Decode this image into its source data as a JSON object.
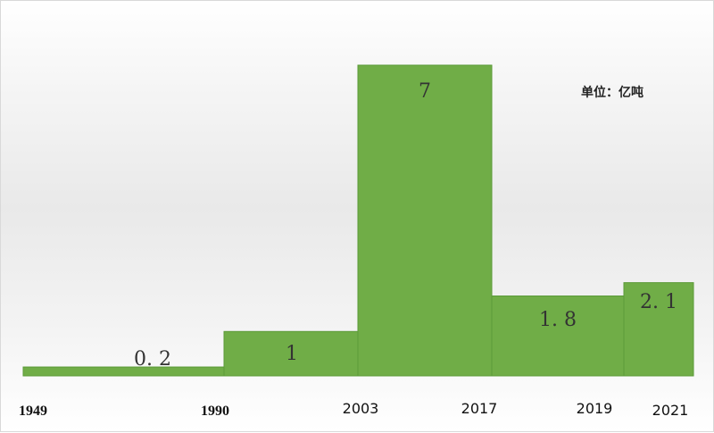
{
  "chart_data": {
    "type": "bar",
    "unit_label": "单位：亿吨",
    "bar_color": "#70ad47",
    "bar_color_dark": "#5b9a38",
    "bars": [
      {
        "start_label": "1949",
        "end_label": "1990",
        "value": 0.2,
        "data_label": "0. 2"
      },
      {
        "start_label": "1990",
        "end_label": "2003",
        "value": 1,
        "data_label": "1"
      },
      {
        "start_label": "2003",
        "end_label": "2017",
        "value": 7,
        "data_label": "7"
      },
      {
        "start_label": "2017",
        "end_label": "2019",
        "value": 1.8,
        "data_label": "1. 8"
      },
      {
        "start_label": "2019",
        "end_label": "2021",
        "value": 2.1,
        "data_label": "2. 1"
      }
    ],
    "x_tick_labels": [
      "1949",
      "1990",
      "2003",
      "2017",
      "2019",
      "2021"
    ],
    "ylim": [
      0,
      7
    ]
  }
}
